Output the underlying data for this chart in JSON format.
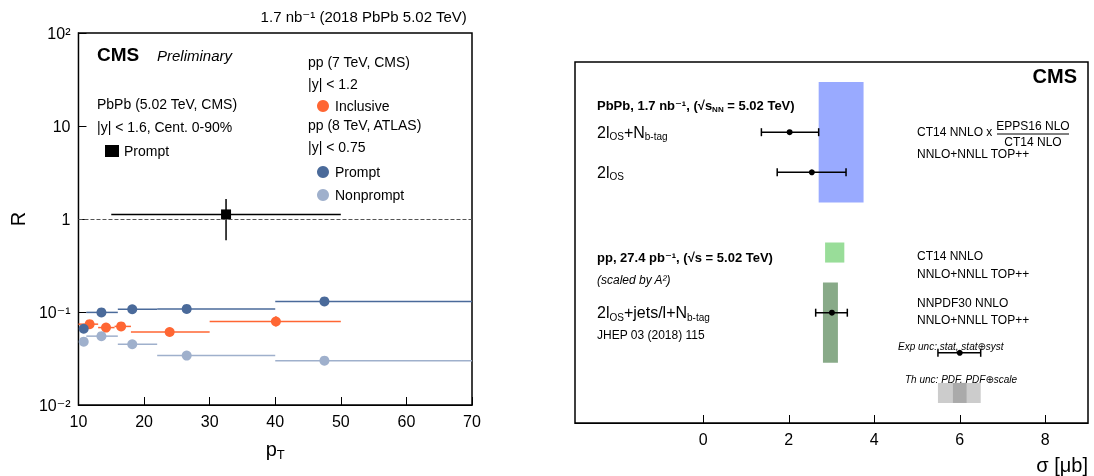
{
  "chart_data": [
    {
      "type": "scatter",
      "title": "1.7 nb⁻¹ (2018 PbPb 5.02 TeV)",
      "xlabel": "p$_{T}$",
      "ylabel": "R",
      "log": "y",
      "xlim": [
        10,
        70
      ],
      "xticks": [
        10,
        20,
        30,
        40,
        50,
        60,
        70
      ],
      "ylim": [
        0.01,
        100
      ],
      "yticks": [
        {
          "value": 0.01,
          "label": "10⁻²"
        },
        {
          "value": 0.1,
          "label": "10⁻¹"
        },
        1,
        10,
        {
          "value": 100,
          "label": "10²"
        }
      ],
      "legend": "top",
      "ref_lines": [
        {
          "axis": "y",
          "value": 1,
          "line_style": "dashed",
          "color": "#555555"
        }
      ],
      "annotations": [
        "CMS",
        "Preliminary",
        "PbPb (5.02 TeV, CMS)",
        "|y| < 1.6, Cent. 0-90%",
        "pp (7 TeV, CMS)",
        "|y| < 1.2",
        "pp (8 TeV, ATLAS)",
        "|y| < 0.75"
      ],
      "series": [
        {
          "name": "Prompt",
          "color": "#000000",
          "marker": "square",
          "x": [
            32.5
          ],
          "values": [
            1.12
          ],
          "xerrors": [
            [
              15,
              50
            ]
          ],
          "errors": [
            [
              0.59,
              1.64
            ]
          ]
        },
        {
          "name": "Inclusive",
          "color": "#ff6633",
          "marker": "circle",
          "x": [
            11.7,
            14.2,
            16.5,
            23.9,
            40.1
          ],
          "values": [
            0.074,
            0.068,
            0.07,
            0.061,
            0.079
          ],
          "xerrors": [
            [
              10,
              13
            ],
            [
              13,
              15.5
            ],
            [
              15.5,
              18
            ],
            [
              18,
              30
            ],
            [
              30,
              50
            ]
          ],
          "errors": [
            null,
            null,
            null,
            null,
            [
              0.07,
              0.09
            ]
          ]
        },
        {
          "name": "Prompt",
          "color": "#4a6a9a",
          "marker": "circle",
          "x": [
            10.8,
            13.5,
            18.2,
            26.5,
            47.5
          ],
          "values": [
            0.066,
            0.099,
            0.107,
            0.108,
            0.13
          ],
          "xerrors": [
            null,
            [
              11.2,
              16
            ],
            [
              16,
              22
            ],
            [
              22,
              40
            ],
            [
              40,
              70
            ]
          ]
        },
        {
          "name": "Nonprompt",
          "color": "#9fb0cc",
          "marker": "circle",
          "x": [
            10.8,
            13.5,
            18.2,
            26.5,
            47.5
          ],
          "values": [
            0.048,
            0.055,
            0.045,
            0.034,
            0.03
          ],
          "xerrors": [
            null,
            [
              11.2,
              16
            ],
            [
              16,
              22
            ],
            [
              22,
              40
            ],
            [
              40,
              70
            ]
          ]
        }
      ]
    },
    {
      "type": "scatter",
      "orientation": "horizontal",
      "xlabel": "σ [μb]",
      "xlim": [
        -3,
        9
      ],
      "xticks": [
        0,
        2,
        4,
        6,
        8
      ],
      "categories": [
        null,
        null,
        null,
        "2l$_{OS}$+N$_{b-tag}$",
        null,
        "2l$_{OS}$",
        null,
        null,
        null,
        null,
        null,
        null,
        "2l$_{OS}$+jets/l+N$_{b-tag}$",
        null,
        null,
        null,
        null,
        null
      ],
      "annotations": [
        "CMS",
        "PbPb, 1.7 nb⁻¹, (√s$_{NN}$ = 5.02 TeV)",
        "CT14 NNLO x",
        "EPPS16 NLO",
        "CT14 NLO",
        "NNLO+NNLL TOP++",
        "pp, 27.4 pb⁻¹, (√s = 5.02 TeV)",
        "(scaled by A²)",
        "CT14 NNLO",
        "NNLO+NNLL TOP++",
        "NNPDF30 NNLO",
        "NNLO+NNLL TOP++",
        "JHEP 03 (2018) 115",
        "Exp unc: stat, stat⊕syst",
        "Th unc: PDF, PDF⊕scale"
      ],
      "bands": [
        {
          "axis": "x",
          "from": 2.7,
          "to": 3.75,
          "color": "#99aaff"
        },
        {
          "axis": "x",
          "from": 2.85,
          "to": 3.3,
          "color": "#99dd99"
        },
        {
          "axis": "x",
          "from": 2.8,
          "to": 3.15,
          "color": "#88aa88"
        },
        {
          "axis": "x",
          "from": 5.49,
          "to": 6.49,
          "color": "#cccccc"
        },
        {
          "axis": "x",
          "from": 5.84,
          "to": 6.16,
          "color": "#aaaaaa"
        }
      ],
      "series": [
        {
          "color": "#000000",
          "marker": "circle",
          "values": [
            null,
            null,
            null,
            2.02,
            null,
            2.54,
            null,
            null,
            null,
            null,
            null,
            null,
            3.01,
            null,
            6.0,
            null,
            null,
            null
          ],
          "errors": [
            null,
            null,
            null,
            [
              1.36,
              2.7
            ],
            null,
            [
              1.73,
              3.34
            ],
            null,
            null,
            null,
            null,
            null,
            null,
            [
              2.63,
              3.37
            ],
            null,
            [
              5.49,
              6.49
            ],
            null,
            null,
            null
          ]
        }
      ]
    }
  ]
}
